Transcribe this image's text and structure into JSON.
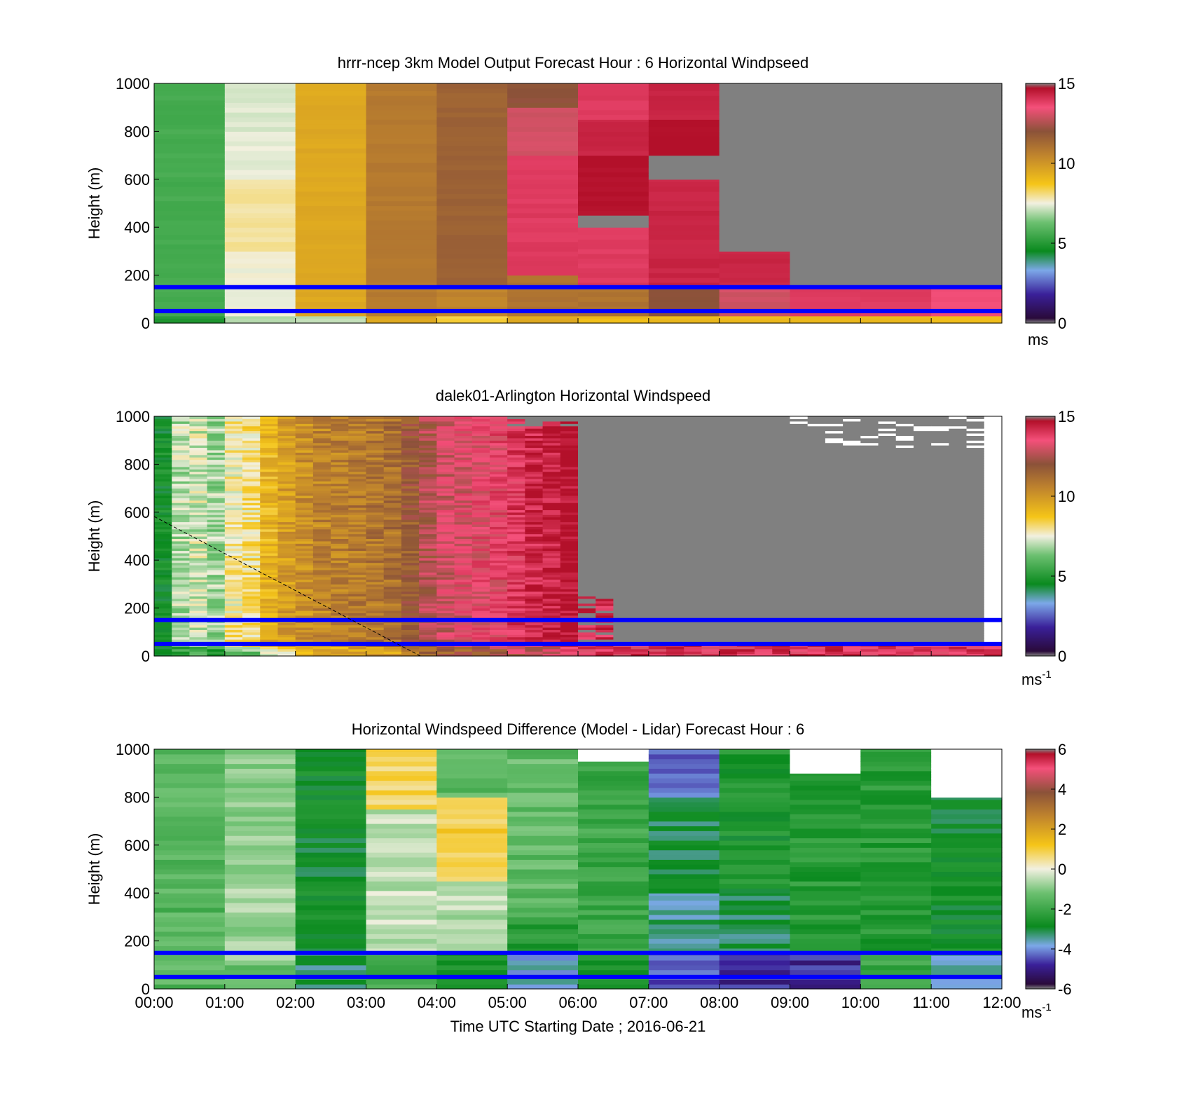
{
  "figure": {
    "xticks": [
      "00:00",
      "01:00",
      "02:00",
      "03:00",
      "04:00",
      "05:00",
      "06:00",
      "07:00",
      "08:00",
      "09:00",
      "10:00",
      "11:00",
      "12:00"
    ],
    "xlabel": "Time UTC  Starting Date ; 2016-06-21",
    "overlay_line_color": "#0000ff",
    "missing_color": "#808080"
  },
  "chart_data": [
    {
      "type": "heatmap",
      "title": "hrrr-ncep 3km Model Output   Forecast Hour : 6 Horizontal Windpseed",
      "ylabel": "Height (m)",
      "ylim": [
        0,
        1000
      ],
      "yticks": [
        "0",
        "200",
        "400",
        "600",
        "800",
        "1000"
      ],
      "colorbar": {
        "range": [
          0,
          15
        ],
        "ticks": [
          "0",
          "5",
          "10",
          "15"
        ],
        "unit": "ms"
      },
      "x": [
        "00:00",
        "01:00",
        "02:00",
        "03:00",
        "04:00",
        "05:00",
        "06:00",
        "07:00",
        "08:00",
        "09:00",
        "10:00",
        "11:00"
      ],
      "overlay_lines_height_m": [
        150,
        50
      ],
      "columns": [
        {
          "t": "00:00",
          "layers": [
            [
              0,
              30,
              5.0
            ],
            [
              30,
              1000,
              5.6
            ]
          ]
        },
        {
          "t": "01:00",
          "layers": [
            [
              0,
              30,
              7.0
            ],
            [
              30,
              300,
              7.5
            ],
            [
              300,
              600,
              7.9
            ],
            [
              600,
              800,
              7.4
            ],
            [
              800,
              1000,
              7.3
            ]
          ]
        },
        {
          "t": "02:00",
          "layers": [
            [
              0,
              30,
              7.0
            ],
            [
              30,
              1000,
              9.5
            ]
          ]
        },
        {
          "t": "03:00",
          "layers": [
            [
              0,
              30,
              9.5
            ],
            [
              30,
              1000,
              10.8
            ]
          ]
        },
        {
          "t": "04:00",
          "layers": [
            [
              0,
              30,
              8.5
            ],
            [
              30,
              150,
              10.5
            ],
            [
              150,
              500,
              11.5
            ],
            [
              500,
              1000,
              11.5
            ]
          ]
        },
        {
          "t": "05:00",
          "layers": [
            [
              0,
              30,
              9.5
            ],
            [
              30,
              200,
              11.0
            ],
            [
              200,
              700,
              14.0
            ],
            [
              700,
              900,
              13.0
            ],
            [
              900,
              1000,
              12.0
            ]
          ]
        },
        {
          "t": "06:00",
          "layers": [
            [
              0,
              30,
              9.0
            ],
            [
              30,
              150,
              11.0
            ],
            [
              150,
              400,
              14.0
            ],
            [
              400,
              450,
              null
            ],
            [
              450,
              700,
              15.0
            ],
            [
              700,
              850,
              14.5
            ],
            [
              850,
              1000,
              14.0
            ]
          ]
        },
        {
          "t": "07:00",
          "layers": [
            [
              0,
              30,
              9.0
            ],
            [
              30,
              150,
              12.0
            ],
            [
              150,
              600,
              14.5
            ],
            [
              600,
              700,
              null
            ],
            [
              700,
              850,
              15.0
            ],
            [
              850,
              1000,
              14.5
            ]
          ]
        },
        {
          "t": "08:00",
          "layers": [
            [
              0,
              30,
              9.0
            ],
            [
              30,
              150,
              13.0
            ],
            [
              150,
              300,
              14.5
            ],
            [
              300,
              1000,
              null
            ]
          ]
        },
        {
          "t": "09:00",
          "layers": [
            [
              0,
              30,
              9.0
            ],
            [
              30,
              150,
              14.0
            ],
            [
              150,
              1000,
              null
            ]
          ]
        },
        {
          "t": "10:00",
          "layers": [
            [
              0,
              30,
              9.0
            ],
            [
              30,
              150,
              14.0
            ],
            [
              150,
              1000,
              null
            ]
          ]
        },
        {
          "t": "11:00",
          "layers": [
            [
              0,
              30,
              9.0
            ],
            [
              30,
              150,
              13.5
            ],
            [
              150,
              1000,
              null
            ]
          ]
        }
      ]
    },
    {
      "type": "heatmap",
      "title": "dalek01-Arlington  Horizontal Windspeed",
      "ylabel": "Height (m)",
      "ylim": [
        0,
        1000
      ],
      "yticks": [
        "0",
        "200",
        "400",
        "600",
        "800",
        "1000"
      ],
      "colorbar": {
        "range": [
          0,
          15
        ],
        "ticks": [
          "0",
          "5",
          "10",
          "15"
        ],
        "unit": "ms",
        "unit_exp": "-1"
      },
      "overlay_lines_height_m": [
        150,
        50
      ],
      "diagonal_marker": {
        "start": [
          "00:00",
          580
        ],
        "end": [
          "03:45",
          0
        ]
      },
      "column_profile_speed": [
        {
          "t": "00:00",
          "v": 5.0
        },
        {
          "t": "00:15",
          "v": 7.0
        },
        {
          "t": "00:30",
          "v": 7.2
        },
        {
          "t": "00:45",
          "v": 6.8
        },
        {
          "t": "01:00",
          "v": 7.8
        },
        {
          "t": "01:15",
          "v": 8.0
        },
        {
          "t": "01:30",
          "v": 9.2
        },
        {
          "t": "01:45",
          "v": 9.8
        },
        {
          "t": "02:00",
          "v": 10.2
        },
        {
          "t": "02:15",
          "v": 10.5
        },
        {
          "t": "02:30",
          "v": 10.6
        },
        {
          "t": "02:45",
          "v": 10.8
        },
        {
          "t": "03:00",
          "v": 10.9
        },
        {
          "t": "03:15",
          "v": 11.1
        },
        {
          "t": "03:30",
          "v": 11.8
        },
        {
          "t": "03:45",
          "v": 12.5
        },
        {
          "t": "04:00",
          "v": 13.0
        },
        {
          "t": "04:15",
          "v": 13.2
        },
        {
          "t": "04:30",
          "v": 13.4
        },
        {
          "t": "04:45",
          "v": 13.6
        },
        {
          "t": "05:00",
          "v": 14.0
        },
        {
          "t": "05:15",
          "v": 14.4
        },
        {
          "t": "05:30",
          "v": 14.6
        },
        {
          "t": "05:45",
          "v": 15.0
        }
      ],
      "after_0600": "mostly missing aloft, 13-15 m/s in lowest ~60 m"
    },
    {
      "type": "heatmap",
      "title": "Horizontal Windspeed Difference (Model - Lidar) Forecast Hour : 6",
      "ylabel": "Height (m)",
      "ylim": [
        0,
        1000
      ],
      "yticks": [
        "0",
        "200",
        "400",
        "600",
        "800",
        "1000"
      ],
      "colorbar": {
        "range": [
          -6,
          6
        ],
        "ticks": [
          "-6",
          "-4",
          "-2",
          "0",
          "2",
          "4",
          "6"
        ],
        "unit": "ms",
        "unit_exp": "-1"
      },
      "x": [
        "00:00",
        "01:00",
        "02:00",
        "03:00",
        "04:00",
        "05:00",
        "06:00",
        "07:00",
        "08:00",
        "09:00",
        "10:00",
        "11:00"
      ],
      "overlay_lines_height_m": [
        150,
        50
      ],
      "columns": [
        {
          "t": "00:00",
          "layers": [
            [
              0,
              1000,
              -1.6
            ]
          ]
        },
        {
          "t": "01:00",
          "layers": [
            [
              0,
              100,
              -1.2
            ],
            [
              100,
              1000,
              -0.8
            ]
          ]
        },
        {
          "t": "02:00",
          "layers": [
            [
              0,
              150,
              -3.2
            ],
            [
              150,
              1000,
              -2.8
            ]
          ]
        },
        {
          "t": "03:00",
          "layers": [
            [
              0,
              150,
              -2.0
            ],
            [
              150,
              750,
              -0.4
            ],
            [
              750,
              1000,
              0.8
            ]
          ]
        },
        {
          "t": "04:00",
          "layers": [
            [
              0,
              150,
              -2.6
            ],
            [
              150,
              450,
              -0.6
            ],
            [
              450,
              800,
              1.0
            ],
            [
              800,
              1000,
              -1.4
            ]
          ]
        },
        {
          "t": "05:00",
          "layers": [
            [
              0,
              150,
              -3.8
            ],
            [
              150,
              300,
              -2.4
            ],
            [
              300,
              1000,
              -1.4
            ]
          ]
        },
        {
          "t": "06:00",
          "layers": [
            [
              0,
              150,
              -2.6
            ],
            [
              150,
              950,
              -2.0
            ],
            [
              950,
              1000,
              null
            ]
          ]
        },
        {
          "t": "07:00",
          "layers": [
            [
              0,
              150,
              -4.6
            ],
            [
              150,
              400,
              -3.4
            ],
            [
              400,
              800,
              -3.0
            ],
            [
              800,
              1000,
              -4.4
            ]
          ]
        },
        {
          "t": "08:00",
          "layers": [
            [
              0,
              150,
              -5.0
            ],
            [
              150,
              400,
              -3.2
            ],
            [
              400,
              1000,
              -2.6
            ]
          ]
        },
        {
          "t": "09:00",
          "layers": [
            [
              0,
              150,
              -5.0
            ],
            [
              150,
              900,
              -2.4
            ],
            [
              900,
              1000,
              null
            ]
          ]
        },
        {
          "t": "10:00",
          "layers": [
            [
              0,
              150,
              -2.0
            ],
            [
              150,
              1000,
              -2.4
            ]
          ]
        },
        {
          "t": "11:00",
          "layers": [
            [
              0,
              150,
              -3.8
            ],
            [
              150,
              800,
              -2.8
            ],
            [
              800,
              1000,
              null
            ]
          ]
        }
      ]
    }
  ]
}
